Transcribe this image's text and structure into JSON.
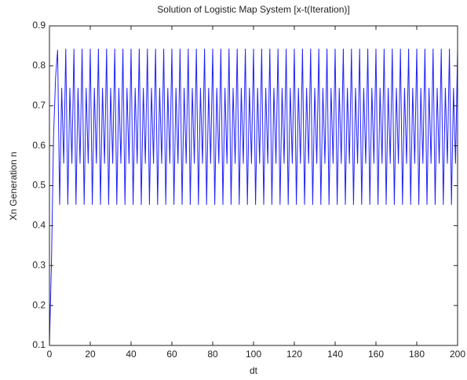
{
  "chart_data": {
    "type": "line",
    "title": "Solution of Logistic Map System [x-t(Iteration)]",
    "xlabel": "dt",
    "ylabel": "Xn Generation n",
    "color": "#1f1fff",
    "xlim": [
      0,
      200
    ],
    "xticks": [
      0,
      20,
      40,
      60,
      80,
      100,
      120,
      140,
      160,
      180,
      200
    ],
    "ylim": [
      0.1,
      0.9
    ],
    "yticks": [
      0.1,
      0.2,
      0.3,
      0.4,
      0.5,
      0.6,
      0.7,
      0.8,
      0.9
    ],
    "grid": false,
    "x": [
      0,
      1,
      2,
      3,
      4,
      5,
      6,
      7,
      8,
      9,
      10,
      11,
      12,
      13,
      14,
      15,
      16,
      17,
      18,
      19,
      20,
      21,
      22,
      23,
      24,
      25,
      26,
      27,
      28,
      29,
      30,
      31,
      32,
      33,
      34,
      35,
      36,
      37,
      38,
      39,
      40,
      41,
      42,
      43,
      44,
      45,
      46,
      47,
      48,
      49,
      50,
      51,
      52,
      53,
      54,
      55,
      56,
      57,
      58,
      59,
      60,
      61,
      62,
      63,
      64,
      65,
      66,
      67,
      68,
      69,
      70,
      71,
      72,
      73,
      74,
      75,
      76,
      77,
      78,
      79,
      80,
      81,
      82,
      83,
      84,
      85,
      86,
      87,
      88,
      89,
      90,
      91,
      92,
      93,
      94,
      95,
      96,
      97,
      98,
      99,
      100,
      101,
      102,
      103,
      104,
      105,
      106,
      107,
      108,
      109,
      110,
      111,
      112,
      113,
      114,
      115,
      116,
      117,
      118,
      119,
      120,
      121,
      122,
      123,
      124,
      125,
      126,
      127,
      128,
      129,
      130,
      131,
      132,
      133,
      134,
      135,
      136,
      137,
      138,
      139,
      140,
      141,
      142,
      143,
      144,
      145,
      146,
      147,
      148,
      149,
      150,
      151,
      152,
      153,
      154,
      155,
      156,
      157,
      158,
      159,
      160,
      161,
      162,
      163,
      164,
      165,
      166,
      167,
      168,
      169,
      170,
      171,
      172,
      173,
      174,
      175,
      176,
      177,
      178,
      179,
      180,
      181,
      182,
      183,
      184,
      185,
      186,
      187,
      188,
      189,
      190,
      191,
      192,
      193,
      194,
      195,
      196,
      197,
      198,
      199,
      200
    ],
    "values": [
      0.1,
      0.31,
      0.62,
      0.77,
      0.84,
      0.452,
      0.745,
      0.555,
      0.843,
      0.452,
      0.745,
      0.555,
      0.843,
      0.452,
      0.745,
      0.555,
      0.843,
      0.452,
      0.745,
      0.555,
      0.843,
      0.452,
      0.745,
      0.555,
      0.843,
      0.452,
      0.745,
      0.555,
      0.843,
      0.452,
      0.745,
      0.555,
      0.843,
      0.452,
      0.745,
      0.555,
      0.843,
      0.452,
      0.745,
      0.555,
      0.843,
      0.452,
      0.745,
      0.555,
      0.843,
      0.452,
      0.745,
      0.555,
      0.843,
      0.452,
      0.745,
      0.555,
      0.843,
      0.452,
      0.745,
      0.555,
      0.843,
      0.452,
      0.745,
      0.555,
      0.843,
      0.452,
      0.745,
      0.555,
      0.843,
      0.452,
      0.745,
      0.555,
      0.843,
      0.452,
      0.745,
      0.555,
      0.843,
      0.452,
      0.745,
      0.555,
      0.843,
      0.452,
      0.745,
      0.555,
      0.843,
      0.452,
      0.745,
      0.555,
      0.843,
      0.452,
      0.745,
      0.555,
      0.843,
      0.452,
      0.745,
      0.555,
      0.843,
      0.452,
      0.745,
      0.555,
      0.843,
      0.452,
      0.745,
      0.555,
      0.843,
      0.452,
      0.745,
      0.555,
      0.843,
      0.452,
      0.745,
      0.555,
      0.843,
      0.452,
      0.745,
      0.555,
      0.843,
      0.452,
      0.745,
      0.555,
      0.843,
      0.452,
      0.745,
      0.555,
      0.843,
      0.452,
      0.745,
      0.555,
      0.843,
      0.452,
      0.745,
      0.555,
      0.843,
      0.452,
      0.745,
      0.555,
      0.843,
      0.452,
      0.745,
      0.555,
      0.843,
      0.452,
      0.745,
      0.555,
      0.843,
      0.452,
      0.745,
      0.555,
      0.843,
      0.452,
      0.745,
      0.555,
      0.843,
      0.452,
      0.745,
      0.555,
      0.843,
      0.452,
      0.745,
      0.555,
      0.843,
      0.452,
      0.745,
      0.555,
      0.843,
      0.452,
      0.745,
      0.555,
      0.843,
      0.452,
      0.745,
      0.555,
      0.843,
      0.452,
      0.745,
      0.555,
      0.843,
      0.452,
      0.745,
      0.555,
      0.843,
      0.452,
      0.745,
      0.555,
      0.843,
      0.452,
      0.745,
      0.555,
      0.843,
      0.452,
      0.745,
      0.555,
      0.843,
      0.452,
      0.745,
      0.555,
      0.843,
      0.452,
      0.745,
      0.555,
      0.843,
      0.452,
      0.745,
      0.555,
      0.843
    ]
  }
}
